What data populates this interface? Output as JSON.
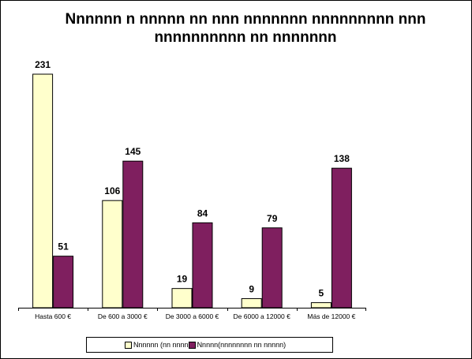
{
  "chart_data": {
    "type": "bar",
    "title": "Nnnnnn n nnnnn nn nnn nnnnnnn nnnnnnnnn nnn nnnnnnnnnn nn nnnnnnn",
    "categories": [
      "Hasta 600  €",
      "De 600 a 3000  €",
      "De 3000 a 6000  €",
      "De 6000 a 12000  €",
      "Más de 12000  €"
    ],
    "series": [
      {
        "name": "Nnnnnn  (nn nnnn",
        "values": [
          231,
          106,
          19,
          9,
          5
        ],
        "color": "#ffffcc"
      },
      {
        "name": "Nnnnn(nnnnnnnn nn nnnnn)",
        "values": [
          51,
          145,
          84,
          79,
          138
        ],
        "color": "#7f1f5f"
      }
    ],
    "xlabel": "",
    "ylabel": "",
    "ylim": [
      0,
      231
    ],
    "grid": false,
    "legend": "bottom"
  }
}
